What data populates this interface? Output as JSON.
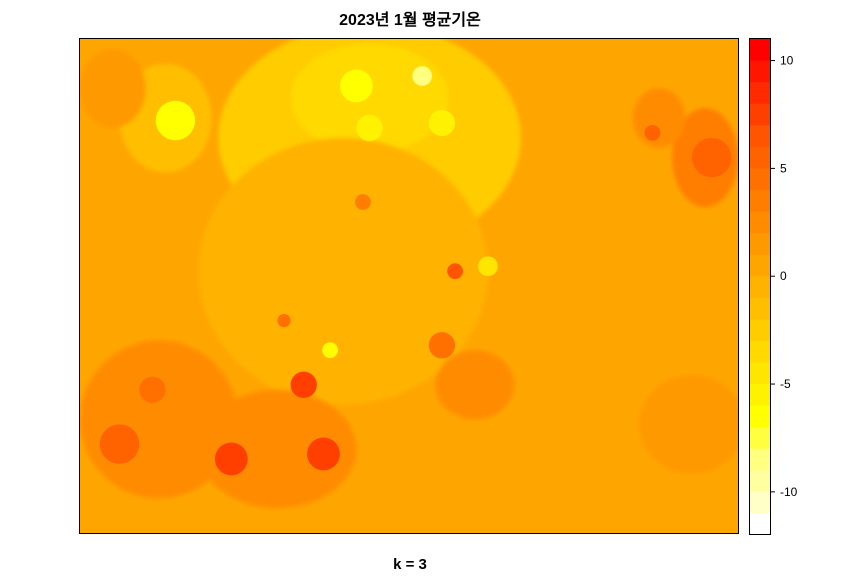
{
  "chart_data": {
    "type": "heatmap",
    "title": "2023년 1월 평균기온",
    "xlabel": "k = 3",
    "ylabel": "",
    "legend": {
      "placement": "right",
      "ticks": [
        10,
        5,
        0,
        -5,
        -10
      ],
      "range": [
        -12,
        11
      ],
      "bins": [
        {
          "from": 10,
          "to": 11,
          "color": "#ff0000"
        },
        {
          "from": 9,
          "to": 10,
          "color": "#ff1500"
        },
        {
          "from": 8,
          "to": 9,
          "color": "#ff2a00"
        },
        {
          "from": 7,
          "to": 8,
          "color": "#ff3f00"
        },
        {
          "from": 6,
          "to": 7,
          "color": "#ff5400"
        },
        {
          "from": 5,
          "to": 6,
          "color": "#ff6300"
        },
        {
          "from": 4,
          "to": 5,
          "color": "#ff7000"
        },
        {
          "from": 3,
          "to": 4,
          "color": "#ff7e00"
        },
        {
          "from": 2,
          "to": 3,
          "color": "#ff8c00"
        },
        {
          "from": 1,
          "to": 2,
          "color": "#ff9900"
        },
        {
          "from": 0,
          "to": 1,
          "color": "#ffa500"
        },
        {
          "from": -1,
          "to": 0,
          "color": "#ffb200"
        },
        {
          "from": -2,
          "to": -1,
          "color": "#ffbf00"
        },
        {
          "from": -3,
          "to": -2,
          "color": "#ffcc00"
        },
        {
          "from": -4,
          "to": -3,
          "color": "#ffd900"
        },
        {
          "from": -5,
          "to": -4,
          "color": "#ffe600"
        },
        {
          "from": -6,
          "to": -5,
          "color": "#fff200"
        },
        {
          "from": -7,
          "to": -6,
          "color": "#ffff00"
        },
        {
          "from": -8,
          "to": -7,
          "color": "#ffff40"
        },
        {
          "from": -9,
          "to": -8,
          "color": "#ffff80"
        },
        {
          "from": -10,
          "to": -9,
          "color": "#ffffa0"
        },
        {
          "from": -11,
          "to": -10,
          "color": "#ffffc8"
        },
        {
          "from": -12,
          "to": -11,
          "color": "#ffffff"
        }
      ]
    },
    "grid": false,
    "background_value": 0.5,
    "field_blobs": [
      {
        "cx": 0.13,
        "cy": 0.16,
        "rx": 0.07,
        "ry": 0.11,
        "value": -2
      },
      {
        "cx": 0.44,
        "cy": 0.2,
        "rx": 0.23,
        "ry": 0.23,
        "value": -3
      },
      {
        "cx": 0.44,
        "cy": 0.12,
        "rx": 0.12,
        "ry": 0.11,
        "value": -4
      },
      {
        "cx": 0.4,
        "cy": 0.47,
        "rx": 0.22,
        "ry": 0.27,
        "value": -1
      },
      {
        "cx": 0.12,
        "cy": 0.77,
        "rx": 0.12,
        "ry": 0.16,
        "value": 2
      },
      {
        "cx": 0.3,
        "cy": 0.83,
        "rx": 0.12,
        "ry": 0.12,
        "value": 2
      },
      {
        "cx": 0.95,
        "cy": 0.24,
        "rx": 0.05,
        "ry": 0.1,
        "value": 3
      },
      {
        "cx": 0.88,
        "cy": 0.16,
        "rx": 0.04,
        "ry": 0.06,
        "value": 2
      },
      {
        "cx": 0.6,
        "cy": 0.7,
        "rx": 0.06,
        "ry": 0.07,
        "value": 2
      },
      {
        "cx": 0.05,
        "cy": 0.1,
        "rx": 0.05,
        "ry": 0.08,
        "value": 1
      },
      {
        "cx": 0.93,
        "cy": 0.78,
        "rx": 0.08,
        "ry": 0.1,
        "value": 1
      }
    ],
    "hotspots": [
      {
        "cx": 0.145,
        "cy": 0.165,
        "r": 0.03,
        "value": -7
      },
      {
        "cx": 0.42,
        "cy": 0.095,
        "r": 0.025,
        "value": -7
      },
      {
        "cx": 0.44,
        "cy": 0.18,
        "r": 0.02,
        "value": -6
      },
      {
        "cx": 0.52,
        "cy": 0.075,
        "r": 0.015,
        "value": -9
      },
      {
        "cx": 0.55,
        "cy": 0.17,
        "r": 0.02,
        "value": -6
      },
      {
        "cx": 0.57,
        "cy": 0.47,
        "r": 0.012,
        "value": 6
      },
      {
        "cx": 0.34,
        "cy": 0.7,
        "r": 0.02,
        "value": 7
      },
      {
        "cx": 0.23,
        "cy": 0.85,
        "r": 0.025,
        "value": 7
      },
      {
        "cx": 0.37,
        "cy": 0.84,
        "r": 0.025,
        "value": 7
      },
      {
        "cx": 0.06,
        "cy": 0.82,
        "r": 0.03,
        "value": 5
      },
      {
        "cx": 0.11,
        "cy": 0.71,
        "r": 0.02,
        "value": 4
      },
      {
        "cx": 0.96,
        "cy": 0.24,
        "r": 0.03,
        "value": 5
      },
      {
        "cx": 0.87,
        "cy": 0.19,
        "r": 0.012,
        "value": 5
      },
      {
        "cx": 0.43,
        "cy": 0.33,
        "r": 0.012,
        "value": 3
      },
      {
        "cx": 0.55,
        "cy": 0.62,
        "r": 0.02,
        "value": 4
      },
      {
        "cx": 0.38,
        "cy": 0.63,
        "r": 0.012,
        "value": -7
      },
      {
        "cx": 0.31,
        "cy": 0.57,
        "r": 0.01,
        "value": 4
      },
      {
        "cx": 0.62,
        "cy": 0.46,
        "r": 0.015,
        "value": -5
      }
    ]
  }
}
